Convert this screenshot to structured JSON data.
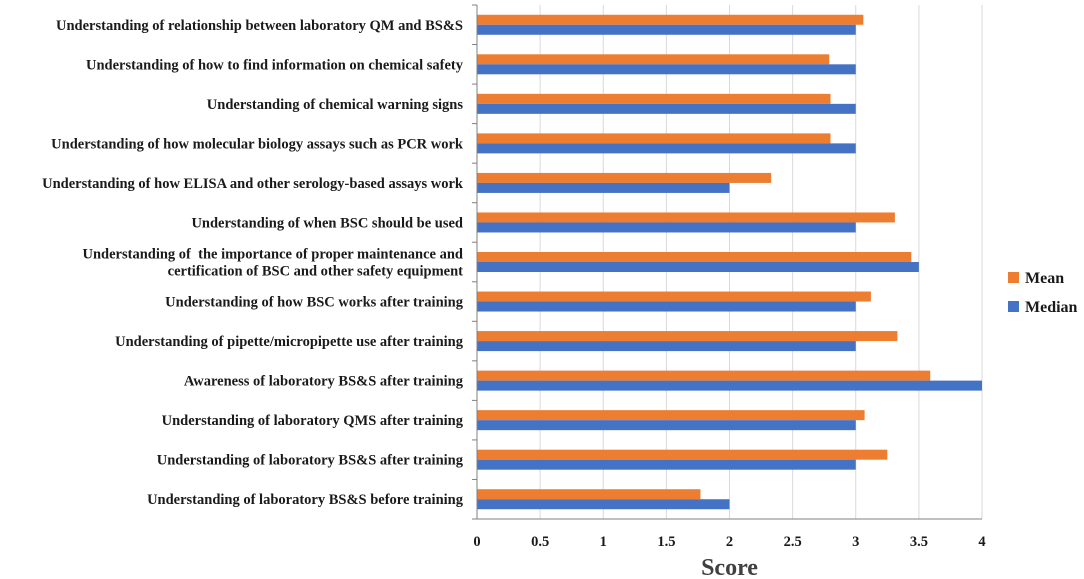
{
  "chart_data": {
    "type": "bar",
    "orientation": "horizontal",
    "title": "",
    "xlabel": "Score",
    "ylabel": "",
    "xlim": [
      0,
      4
    ],
    "xticks": [
      "0",
      "0.5",
      "1",
      "1.5",
      "2",
      "2.5",
      "3",
      "3.5",
      "4"
    ],
    "grid": "vertical",
    "legend_position": "right",
    "categories": [
      [
        "Understanding of relationship between laboratory QM and BS&S"
      ],
      [
        "Understanding of how to find information on chemical safety"
      ],
      [
        "Understanding of chemical warning signs"
      ],
      [
        "Understanding of how molecular biology assays such as PCR work"
      ],
      [
        "Understanding of how ELISA and other serology-based assays work"
      ],
      [
        "Understanding of when BSC should be used"
      ],
      [
        "Understanding of  the importance of proper maintenance and",
        "certification of BSC and other safety equipment"
      ],
      [
        "Understanding of how BSC works after training"
      ],
      [
        "Understanding of pipette/micropipette use after training"
      ],
      [
        "Awareness of laboratory BS&S after training"
      ],
      [
        "Understanding of laboratory QMS after training"
      ],
      [
        "Understanding of laboratory BS&S after training"
      ],
      [
        "Understanding of laboratory BS&S before training"
      ]
    ],
    "series": [
      {
        "name": "Mean",
        "color": "#ED7D31",
        "values": [
          3.06,
          2.79,
          2.8,
          2.8,
          2.33,
          3.31,
          3.44,
          3.12,
          3.33,
          3.59,
          3.07,
          3.25,
          1.77
        ]
      },
      {
        "name": "Median",
        "color": "#4472C4",
        "values": [
          3.0,
          3.0,
          3.0,
          3.0,
          2.0,
          3.0,
          3.5,
          3.0,
          3.0,
          4.0,
          3.0,
          3.0,
          2.0
        ]
      }
    ]
  }
}
